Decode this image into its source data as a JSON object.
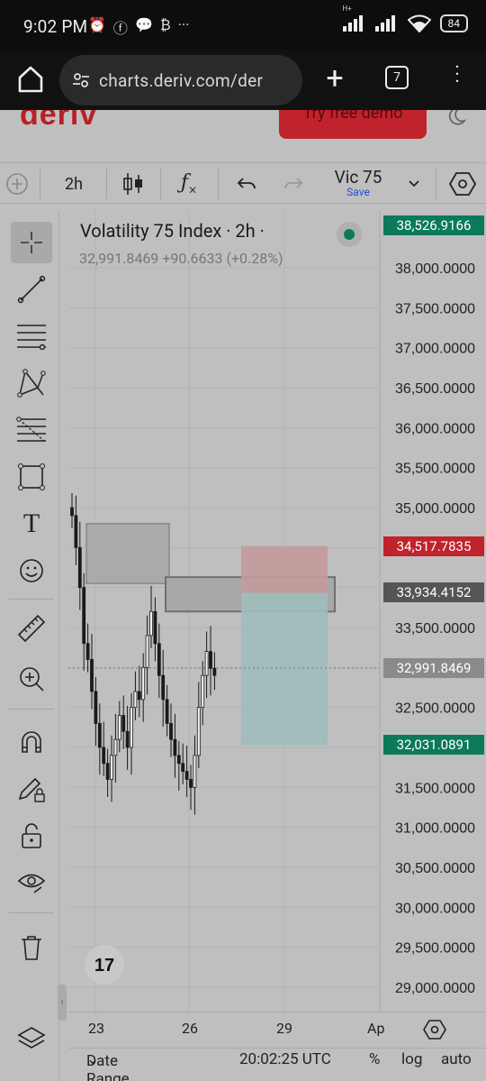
{
  "status_bar": {
    "time": "9:02 PM",
    "network": "H+",
    "battery": "84"
  },
  "browser": {
    "url": "charts.deriv.com/der",
    "tab_count": "7"
  },
  "site": {
    "logo": "deriv",
    "demo_button": "Try free demo"
  },
  "toolbar": {
    "interval": "2h",
    "layout_name": "Vic 75",
    "save_label": "Save"
  },
  "chart": {
    "legend_title": "Volatility 75 Index · 2h ·",
    "legend_values": "32,991.8469  +90.6633 (+0.28%)"
  },
  "footer": {
    "date_range": "Date Range",
    "time": "20:02:25 UTC",
    "percent": "%",
    "log": "log",
    "auto": "auto"
  },
  "chart_data": {
    "type": "candlestick",
    "title": "Volatility 75 Index · 2h",
    "y_axis": {
      "range": [
        29000,
        38700
      ],
      "ticks": [
        "38,000.0000",
        "37,500.0000",
        "37,000.0000",
        "36,500.0000",
        "36,000.0000",
        "35,500.0000",
        "35,000.0000",
        "34,500.0000",
        "34,000.0000",
        "33,500.0000",
        "33,000.0000",
        "32,500.0000",
        "32,000.0000",
        "31,500.0000",
        "31,000.0000",
        "30,500.0000",
        "30,000.0000",
        "29,500.0000",
        "29,000.0000"
      ],
      "tick_values": [
        38000,
        37500,
        37000,
        36500,
        36000,
        35500,
        35000,
        34500,
        34000,
        33500,
        33000,
        32500,
        32000,
        31500,
        31000,
        30500,
        30000,
        29500,
        29000
      ]
    },
    "x_axis": {
      "ticks": [
        "23",
        "26",
        "29",
        "Ap"
      ]
    },
    "price_labels": [
      {
        "value": 38526.9166,
        "text": "38,526.9166",
        "color": "#0c7a5a"
      },
      {
        "value": 34517.7835,
        "text": "34,517.7835",
        "color": "#c0232b"
      },
      {
        "value": 33934.4152,
        "text": "33,934.4152",
        "color": "#555555"
      },
      {
        "value": 32991.8469,
        "text": "32,991.8469",
        "color": "#8a8a8a"
      },
      {
        "value": 32031.0891,
        "text": "32,031.0891",
        "color": "#0c7a5a"
      }
    ],
    "candles_approx_close": [
      34900,
      34500,
      34000,
      33300,
      33100,
      32700,
      32300,
      32000,
      31800,
      31600,
      31900,
      32100,
      32400,
      32200,
      32000,
      32500,
      32700,
      32600,
      33000,
      33400,
      33700,
      33300,
      32900,
      32600,
      32300,
      32100,
      31900,
      31800,
      31700,
      31600,
      31500,
      31900,
      32500,
      32900,
      33200,
      32990
    ]
  }
}
